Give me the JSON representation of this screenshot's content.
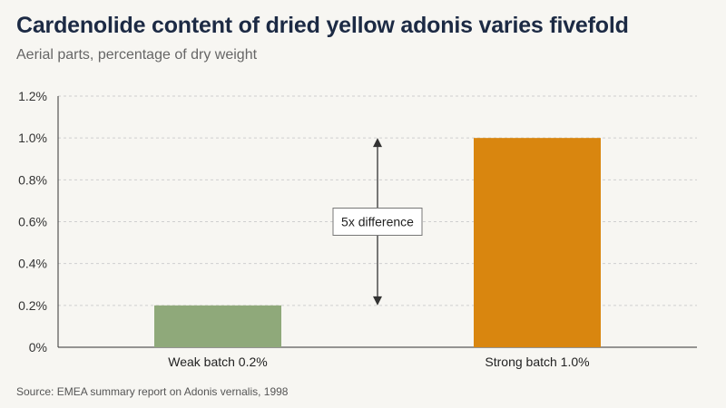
{
  "header": {
    "title": "Cardenolide content of dried yellow adonis varies fivefold",
    "subtitle": "Aerial parts, percentage of dry weight"
  },
  "footer": {
    "source": "Source: EMEA summary report on Adonis vernalis, 1998"
  },
  "chart_data": {
    "type": "bar",
    "title": "Cardenolide content of dried yellow adonis varies fivefold",
    "subtitle": "Aerial parts, percentage of dry weight",
    "xlabel": "",
    "ylabel": "",
    "unit": "%",
    "ylim": [
      0,
      1.2
    ],
    "yticks": [
      0,
      0.2,
      0.4,
      0.6,
      0.8,
      1.0,
      1.2
    ],
    "ytick_labels": [
      "0%",
      "0.2%",
      "0.4%",
      "0.6%",
      "0.8%",
      "1.0%",
      "1.2%"
    ],
    "grid": true,
    "categories": [
      "Weak batch",
      "Strong batch"
    ],
    "values": [
      0.2,
      1.0
    ],
    "value_labels": [
      "0.2%",
      "1.0%"
    ],
    "colors": [
      "#8fa97a",
      "#d9860f"
    ],
    "annotation": {
      "text": "5x difference",
      "from": 0.2,
      "to": 1.0
    }
  }
}
